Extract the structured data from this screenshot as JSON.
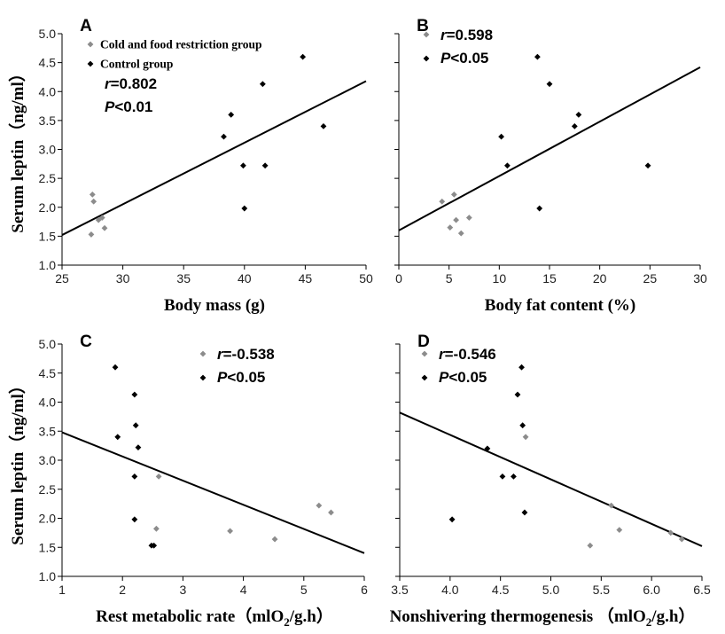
{
  "chart_data": [
    {
      "panel": "A",
      "type": "scatter",
      "xlabel": "Body mass (g)",
      "ylabel": "Serum leptin（ng/ml）",
      "xlim": [
        25,
        50
      ],
      "ylim": [
        1.0,
        5.0
      ],
      "xticks": [
        "25",
        "30",
        "35",
        "40",
        "45",
        "50"
      ],
      "yticks": [
        "1.0",
        "1.5",
        "2.0",
        "2.5",
        "3.0",
        "3.5",
        "4.0",
        "4.5",
        "5.0"
      ],
      "legend": [
        "Cold and food restriction group",
        "Control group"
      ],
      "stats": {
        "r_label": "r",
        "r_value": "=0.802",
        "p_label": "P",
        "p_value": "<0.01"
      },
      "series": [
        {
          "name": "Cold and food restriction group",
          "color": "#8c8c8c",
          "points": [
            [
              27.5,
              2.22
            ],
            [
              27.6,
              2.1
            ],
            [
              27.4,
              1.53
            ],
            [
              28.0,
              1.78
            ],
            [
              28.3,
              1.82
            ],
            [
              28.5,
              1.64
            ]
          ]
        },
        {
          "name": "Control group",
          "color": "#000000",
          "points": [
            [
              38.3,
              3.22
            ],
            [
              38.9,
              3.6
            ],
            [
              39.9,
              2.72
            ],
            [
              40.0,
              1.98
            ],
            [
              41.5,
              4.13
            ],
            [
              41.7,
              2.72
            ],
            [
              44.8,
              4.6
            ],
            [
              46.5,
              3.4
            ]
          ]
        }
      ],
      "trendline": [
        [
          25,
          1.52
        ],
        [
          50,
          4.18
        ]
      ]
    },
    {
      "panel": "B",
      "type": "scatter",
      "xlabel": "Body fat content (%)",
      "ylabel": "",
      "xlim": [
        0,
        30
      ],
      "ylim": [
        1.0,
        5.0
      ],
      "xticks": [
        "0",
        "5",
        "10",
        "15",
        "20",
        "25",
        "30"
      ],
      "yticks": [],
      "legend": [],
      "stats": {
        "r_label": "r",
        "r_value": "=0.598",
        "p_label": "P",
        "p_value": "<0.05"
      },
      "series": [
        {
          "name": "Cold and food restriction group",
          "color": "#8c8c8c",
          "points": [
            [
              4.3,
              2.1
            ],
            [
              5.1,
              1.65
            ],
            [
              5.5,
              2.22
            ],
            [
              5.7,
              1.78
            ],
            [
              6.2,
              1.55
            ],
            [
              7.0,
              1.82
            ]
          ]
        },
        {
          "name": "Control group",
          "color": "#000000",
          "points": [
            [
              10.2,
              3.22
            ],
            [
              10.8,
              2.72
            ],
            [
              13.8,
              4.6
            ],
            [
              14.0,
              1.98
            ],
            [
              15.0,
              4.13
            ],
            [
              17.5,
              3.4
            ],
            [
              17.9,
              3.6
            ],
            [
              24.8,
              2.72
            ]
          ]
        }
      ],
      "trendline": [
        [
          0,
          1.6
        ],
        [
          30,
          4.42
        ]
      ]
    },
    {
      "panel": "C",
      "type": "scatter",
      "xlabel": "Rest  metabolic rate（mlO",
      "xlabel_sub": "2",
      "xlabel_tail": "/g.h）",
      "ylabel": "Serum leptin（ng/ml）",
      "xlim": [
        1,
        6
      ],
      "ylim": [
        1.0,
        5.0
      ],
      "xticks": [
        "1",
        "2",
        "3",
        "4",
        "5",
        "6"
      ],
      "yticks": [
        "1.0",
        "1.5",
        "2.0",
        "2.5",
        "3.0",
        "3.5",
        "4.0",
        "4.5",
        "5.0"
      ],
      "legend": [],
      "stats": {
        "r_label": "r",
        "r_value": "=-0.538",
        "p_label": "P",
        "p_value": "<0.05"
      },
      "series": [
        {
          "name": "Cold and food restriction group",
          "color": "#8c8c8c",
          "points": [
            [
              2.6,
              2.72
            ],
            [
              2.56,
              1.82
            ],
            [
              3.78,
              1.78
            ],
            [
              4.52,
              1.64
            ],
            [
              5.25,
              2.22
            ],
            [
              5.45,
              2.1
            ]
          ]
        },
        {
          "name": "Control group",
          "color": "#000000",
          "points": [
            [
              1.88,
              4.6
            ],
            [
              1.92,
              3.4
            ],
            [
              2.2,
              4.13
            ],
            [
              2.22,
              3.6
            ],
            [
              2.26,
              3.22
            ],
            [
              2.2,
              2.72
            ],
            [
              2.2,
              1.98
            ],
            [
              2.48,
              1.53
            ],
            [
              2.52,
              1.53
            ]
          ]
        }
      ],
      "trendline": [
        [
          1,
          3.48
        ],
        [
          6,
          1.4
        ]
      ]
    },
    {
      "panel": "D",
      "type": "scatter",
      "xlabel": "Nonshivering thermogenesis  （mlO",
      "xlabel_sub": "2",
      "xlabel_tail": "/g.h）",
      "ylabel": "",
      "xlim": [
        3.5,
        6.5
      ],
      "ylim": [
        1.0,
        5.0
      ],
      "xticks": [
        "3.5",
        "4.0",
        "4.5",
        "5.0",
        "5.5",
        "6.0",
        "6.5"
      ],
      "yticks": [],
      "legend": [],
      "stats": {
        "r_label": "r",
        "r_value": "=-0.546",
        "p_label": "P",
        "p_value": "<0.05"
      },
      "series": [
        {
          "name": "Cold and food restriction group",
          "color": "#8c8c8c",
          "points": [
            [
              4.75,
              3.4
            ],
            [
              5.39,
              1.53
            ],
            [
              5.6,
              2.22
            ],
            [
              5.68,
              1.8
            ],
            [
              6.19,
              1.75
            ],
            [
              6.3,
              1.64
            ]
          ]
        },
        {
          "name": "Control group",
          "color": "#000000",
          "points": [
            [
              4.02,
              1.98
            ],
            [
              4.37,
              3.2
            ],
            [
              4.52,
              2.72
            ],
            [
              4.63,
              2.72
            ],
            [
              4.67,
              4.13
            ],
            [
              4.71,
              4.6
            ],
            [
              4.72,
              3.6
            ],
            [
              4.74,
              2.1
            ]
          ]
        }
      ],
      "trendline": [
        [
          3.5,
          3.82
        ],
        [
          6.5,
          1.52
        ]
      ]
    }
  ]
}
